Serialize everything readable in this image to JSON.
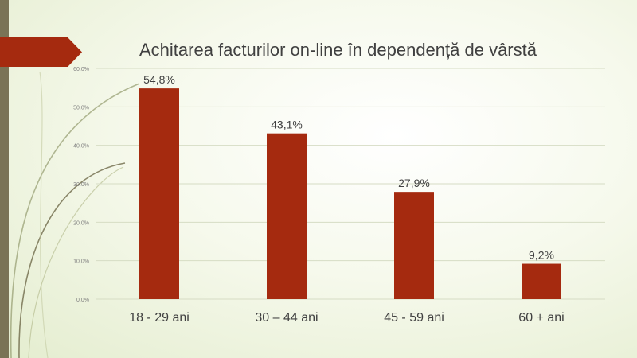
{
  "colors": {
    "bar": "#a52a0f",
    "accent_bar": "#7a7356",
    "flag": "#a52a0f",
    "grid": "#d6dcc4",
    "text": "#404040",
    "tick": "#7f7f7f"
  },
  "chart_data": {
    "type": "bar",
    "title": "Achitarea facturilor on-line în dependență de vârstă",
    "categories": [
      "18 - 29 ani",
      "30 – 44 ani",
      "45 - 59 ani",
      "60 + ani"
    ],
    "values": [
      54.8,
      43.1,
      27.9,
      9.2
    ],
    "data_labels": [
      "54,8%",
      "43,1%",
      "27,9%",
      "9,2%"
    ],
    "y_ticks": [
      0,
      10,
      20,
      30,
      40,
      50,
      60
    ],
    "y_tick_labels": [
      "0.0%",
      "10.0%",
      "20.0%",
      "30.0%",
      "40.0%",
      "50.0%",
      "60.0%"
    ],
    "ylim": [
      0,
      60
    ],
    "xlabel": "",
    "ylabel": "",
    "grid": true,
    "legend": "none"
  }
}
